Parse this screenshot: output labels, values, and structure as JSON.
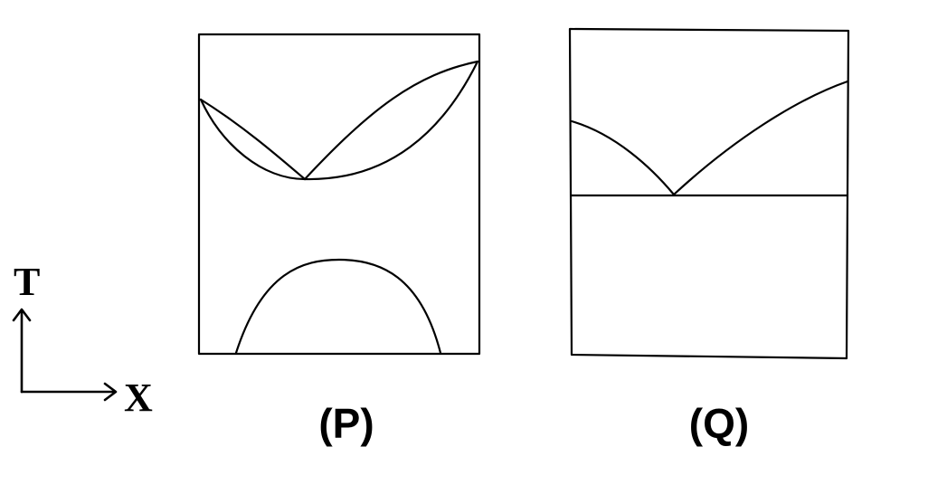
{
  "axes": {
    "y_label": "T",
    "x_label": "X"
  },
  "panels": [
    {
      "label": "(P)"
    },
    {
      "label": "(Q)"
    }
  ],
  "colors": {
    "stroke": "#000000",
    "background": "#ffffff"
  }
}
